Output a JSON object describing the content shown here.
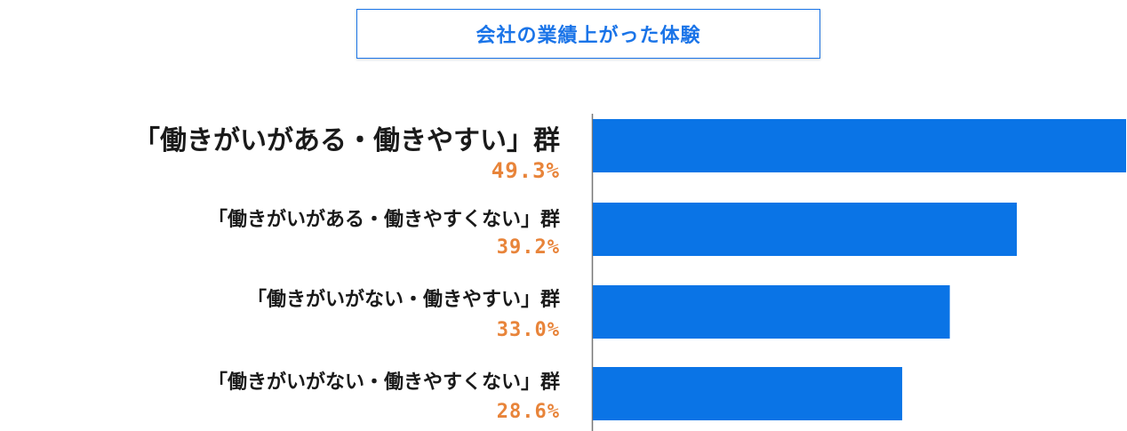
{
  "chart_data": {
    "type": "bar",
    "orientation": "horizontal",
    "title": "会社の業績上がった体験",
    "categories": [
      "「働きがいがある・働きやすい」群",
      "「働きがいがある・働きやすくない」群",
      "「働きがいがない・働きやすい」群",
      "「働きがいがない・働きやすくない」群"
    ],
    "values": [
      49.3,
      39.2,
      33.0,
      28.6
    ],
    "value_labels": [
      "49.3%",
      "39.2%",
      "33.0%",
      "28.6%"
    ],
    "xlim": [
      0,
      49.3
    ],
    "grid": false,
    "colors": {
      "bar": "#0a74e6",
      "value_label": "#e8843a",
      "title": "#1a74e8",
      "axis": "#777777"
    }
  }
}
